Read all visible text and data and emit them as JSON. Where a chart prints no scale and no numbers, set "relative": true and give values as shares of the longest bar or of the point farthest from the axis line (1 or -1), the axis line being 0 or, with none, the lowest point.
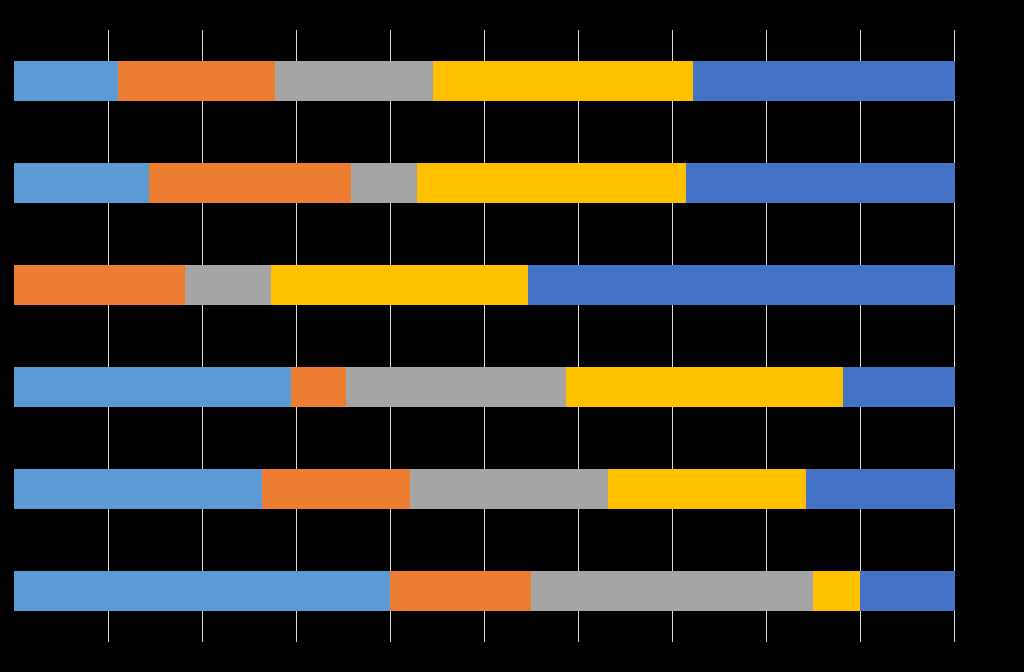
{
  "chart_data": {
    "type": "bar",
    "orientation": "horizontal",
    "stacked": true,
    "relative": true,
    "grid": "x",
    "categories": [
      null,
      null,
      null,
      null,
      null,
      null
    ],
    "series": [
      {
        "color": "#5b9bd5",
        "values": [
          0.111,
          0.144,
          0,
          0.294,
          0.264,
          0.4
        ]
      },
      {
        "color": "#ed7d31",
        "values": [
          0.167,
          0.214,
          0.182,
          0.059,
          0.157,
          0.15
        ]
      },
      {
        "color": "#a5a5a5",
        "values": [
          0.167,
          0.071,
          0.091,
          0.234,
          0.211,
          0.3
        ]
      },
      {
        "color": "#ffc000",
        "values": [
          0.277,
          0.285,
          0.273,
          0.294,
          0.21,
          0.05
        ]
      },
      {
        "color": "#4472c4",
        "values": [
          0.278,
          0.286,
          0.454,
          0.119,
          0.158,
          0.1
        ]
      }
    ]
  }
}
